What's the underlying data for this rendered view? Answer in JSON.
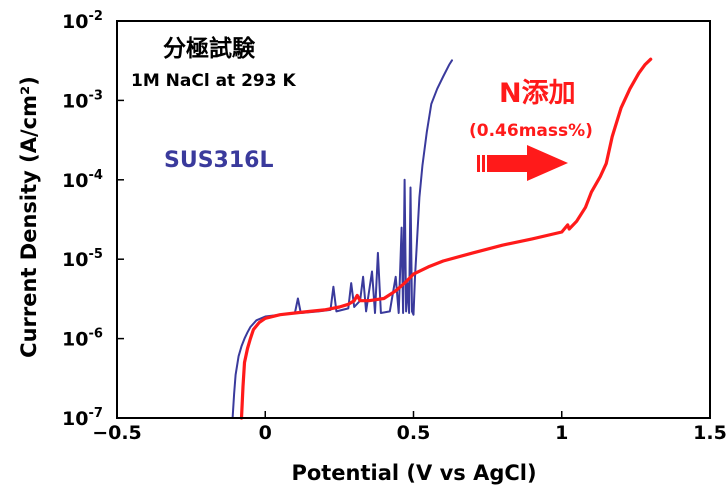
{
  "chart_data": {
    "type": "line",
    "title": "分極試験",
    "subtitle": "1M NaCl at 293 K",
    "xlabel": "Potential (V vs AgCl)",
    "ylabel": "Current Density (A/cm²)",
    "xlim": [
      -0.5,
      1.5
    ],
    "ylim": [
      1e-07,
      0.01
    ],
    "yscale": "log",
    "x_ticks": [
      "−0.5",
      "0",
      "0.5",
      "1",
      "1.5"
    ],
    "y_ticks": [
      {
        "base": "10",
        "exp": "-7",
        "value": 1e-07
      },
      {
        "base": "10",
        "exp": "-6",
        "value": 1e-06
      },
      {
        "base": "10",
        "exp": "-5",
        "value": 1e-05
      },
      {
        "base": "10",
        "exp": "-4",
        "value": 0.0001
      },
      {
        "base": "10",
        "exp": "-3",
        "value": 0.001
      },
      {
        "base": "10",
        "exp": "-2",
        "value": 0.01
      }
    ],
    "grid": false,
    "series": [
      {
        "name": "SUS316L",
        "color": "#3a3a9c",
        "points": [
          [
            -0.11,
            1e-07
          ],
          [
            -0.105,
            2e-07
          ],
          [
            -0.1,
            3.5e-07
          ],
          [
            -0.09,
            6e-07
          ],
          [
            -0.08,
            8e-07
          ],
          [
            -0.07,
            1e-06
          ],
          [
            -0.06,
            1.2e-06
          ],
          [
            -0.05,
            1.4e-06
          ],
          [
            -0.03,
            1.7e-06
          ],
          [
            0.0,
            1.9e-06
          ],
          [
            0.05,
            2e-06
          ],
          [
            0.1,
            2.1e-06
          ],
          [
            0.11,
            3.2e-06
          ],
          [
            0.12,
            2.1e-06
          ],
          [
            0.18,
            2.2e-06
          ],
          [
            0.22,
            2.3e-06
          ],
          [
            0.23,
            4.5e-06
          ],
          [
            0.24,
            2.2e-06
          ],
          [
            0.28,
            2.4e-06
          ],
          [
            0.29,
            5e-06
          ],
          [
            0.3,
            2.5e-06
          ],
          [
            0.32,
            3e-06
          ],
          [
            0.33,
            6e-06
          ],
          [
            0.34,
            2.2e-06
          ],
          [
            0.36,
            7e-06
          ],
          [
            0.37,
            2.1e-06
          ],
          [
            0.38,
            1.2e-05
          ],
          [
            0.39,
            2.1e-06
          ],
          [
            0.42,
            2.2e-06
          ],
          [
            0.44,
            6e-06
          ],
          [
            0.45,
            2.1e-06
          ],
          [
            0.46,
            2.5e-05
          ],
          [
            0.465,
            2.1e-06
          ],
          [
            0.47,
            0.0001
          ],
          [
            0.475,
            2.2e-06
          ],
          [
            0.48,
            5e-06
          ],
          [
            0.485,
            2.1e-06
          ],
          [
            0.49,
            8e-05
          ],
          [
            0.495,
            2.2e-06
          ],
          [
            0.5,
            2e-06
          ],
          [
            0.505,
            6e-06
          ],
          [
            0.51,
            1.3e-05
          ],
          [
            0.52,
            6e-05
          ],
          [
            0.53,
            0.00015
          ],
          [
            0.545,
            0.0004
          ],
          [
            0.56,
            0.0009
          ],
          [
            0.58,
            0.0014
          ],
          [
            0.6,
            0.002
          ],
          [
            0.62,
            0.0028
          ],
          [
            0.63,
            0.0032
          ]
        ]
      },
      {
        "name": "N添加",
        "sublabel": "(0.46mass%)",
        "color": "#ff1a1a",
        "points": [
          [
            -0.08,
            1e-07
          ],
          [
            -0.075,
            2.5e-07
          ],
          [
            -0.07,
            5e-07
          ],
          [
            -0.06,
            7.5e-07
          ],
          [
            -0.05,
            1e-06
          ],
          [
            -0.04,
            1.3e-06
          ],
          [
            -0.02,
            1.6e-06
          ],
          [
            0.0,
            1.8e-06
          ],
          [
            0.05,
            2e-06
          ],
          [
            0.1,
            2.1e-06
          ],
          [
            0.15,
            2.2e-06
          ],
          [
            0.2,
            2.3e-06
          ],
          [
            0.25,
            2.5e-06
          ],
          [
            0.28,
            2.7e-06
          ],
          [
            0.3,
            3e-06
          ],
          [
            0.31,
            3.5e-06
          ],
          [
            0.32,
            3e-06
          ],
          [
            0.35,
            3e-06
          ],
          [
            0.4,
            3.2e-06
          ],
          [
            0.44,
            4e-06
          ],
          [
            0.47,
            5e-06
          ],
          [
            0.5,
            6.5e-06
          ],
          [
            0.55,
            8e-06
          ],
          [
            0.6,
            9.5e-06
          ],
          [
            0.7,
            1.2e-05
          ],
          [
            0.8,
            1.5e-05
          ],
          [
            0.9,
            1.8e-05
          ],
          [
            1.0,
            2.2e-05
          ],
          [
            1.02,
            2.7e-05
          ],
          [
            1.025,
            2.4e-05
          ],
          [
            1.05,
            3e-05
          ],
          [
            1.08,
            4.5e-05
          ],
          [
            1.1,
            7e-05
          ],
          [
            1.13,
            0.00011
          ],
          [
            1.15,
            0.00016
          ],
          [
            1.17,
            0.00035
          ],
          [
            1.2,
            0.0008
          ],
          [
            1.23,
            0.0014
          ],
          [
            1.26,
            0.0022
          ],
          [
            1.28,
            0.0028
          ],
          [
            1.3,
            0.0033
          ]
        ]
      }
    ]
  },
  "annotations": {
    "test_title": "分極試験",
    "condition": "1M NaCl at 293 K",
    "sus_label": "SUS316L",
    "n_label": "N添加",
    "n_sublabel": "(0.46mass%)"
  }
}
